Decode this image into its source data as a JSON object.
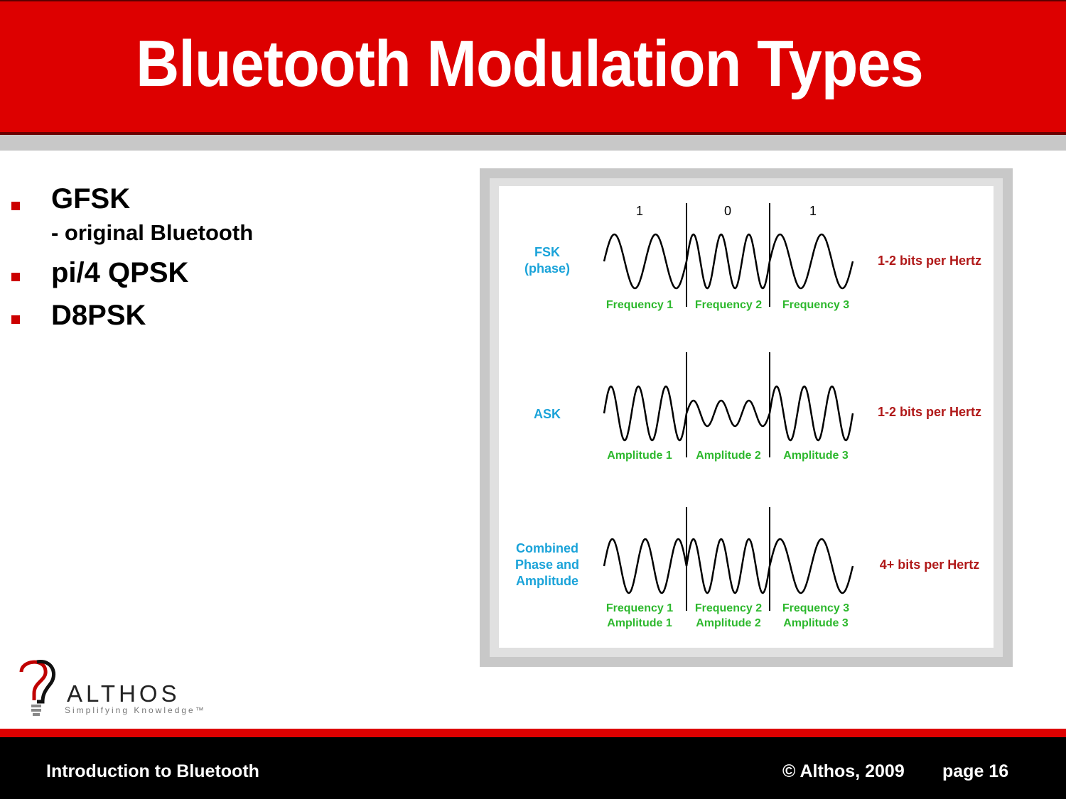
{
  "slide": {
    "title": "Bluetooth Modulation Types"
  },
  "bullets": [
    {
      "label": "GFSK",
      "sub": "- original Bluetooth"
    },
    {
      "label": "pi/4 QPSK"
    },
    {
      "label": "D8PSK"
    }
  ],
  "diagram": {
    "bits": [
      "1",
      "0",
      "1"
    ],
    "rows": [
      {
        "label_lines": [
          "FSK",
          "(phase)"
        ],
        "rate": "1-2 bits per Hertz",
        "segment_labels": [
          [
            "Frequency 1"
          ],
          [
            "Frequency 2"
          ],
          [
            "Frequency 3"
          ]
        ]
      },
      {
        "label_lines": [
          "ASK"
        ],
        "rate": "1-2 bits per Hertz",
        "segment_labels": [
          [
            "Amplitude 1"
          ],
          [
            "Amplitude 2"
          ],
          [
            "Amplitude 3"
          ]
        ]
      },
      {
        "label_lines": [
          "Combined",
          "Phase and",
          "Amplitude"
        ],
        "rate": "4+ bits per Hertz",
        "segment_labels": [
          [
            "Frequency 1",
            "Amplitude 1"
          ],
          [
            "Frequency 2",
            "Amplitude 2"
          ],
          [
            "Frequency 3",
            "Amplitude 3"
          ]
        ]
      }
    ],
    "colors": {
      "label": "#1aa3d9",
      "segment": "#2db82d",
      "rate": "#b01818",
      "wave": "#000000"
    }
  },
  "logo": {
    "word": "ALTHOS",
    "tagline": "Simplifying Knowledge™"
  },
  "footer": {
    "left": "Introduction to Bluetooth",
    "copyright": "© Althos, 2009",
    "page": "page 16"
  },
  "theme": {
    "accent": "#dd0000",
    "bullet": "#cc0000"
  }
}
